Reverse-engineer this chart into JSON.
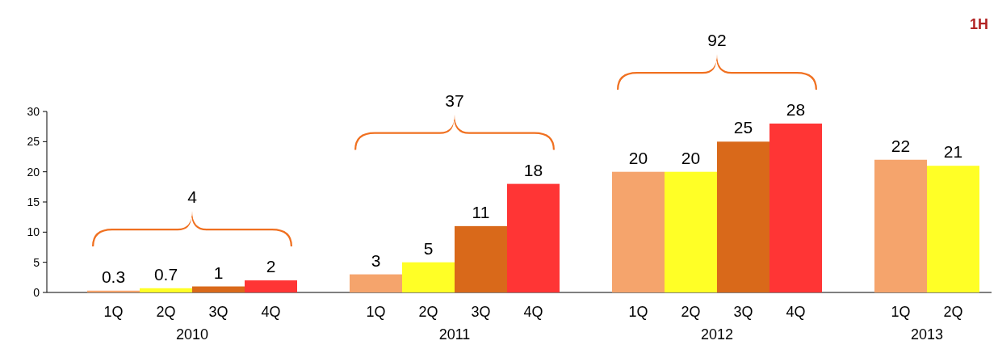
{
  "chart_data": {
    "type": "bar",
    "categories": [
      "1Q",
      "2Q",
      "3Q",
      "4Q",
      null,
      "1Q",
      "2Q",
      "3Q",
      "4Q",
      null,
      "1Q",
      "2Q",
      "3Q",
      "4Q",
      null,
      "1Q",
      "2Q"
    ],
    "values": [
      0.3,
      0.7,
      1,
      2,
      null,
      3,
      5,
      11,
      18,
      null,
      20,
      20,
      25,
      28,
      null,
      22,
      21
    ],
    "colors": [
      "#f5a46c",
      "#ffff26",
      "#d9691a",
      "#ff3535",
      null,
      "#f5a46c",
      "#ffff26",
      "#d9691a",
      "#ff3535",
      null,
      "#f5a46c",
      "#ffff26",
      "#d9691a",
      "#ff3535",
      null,
      "#f5a46c",
      "#ffff26"
    ],
    "ylim": [
      0,
      30
    ],
    "yticks": [
      0,
      5,
      10,
      15,
      20,
      25,
      30
    ],
    "data_labels": true,
    "grid": false,
    "annotations": [
      "2010",
      "2011",
      "2012",
      "2013",
      "4",
      "37",
      "92",
      "1H"
    ]
  }
}
